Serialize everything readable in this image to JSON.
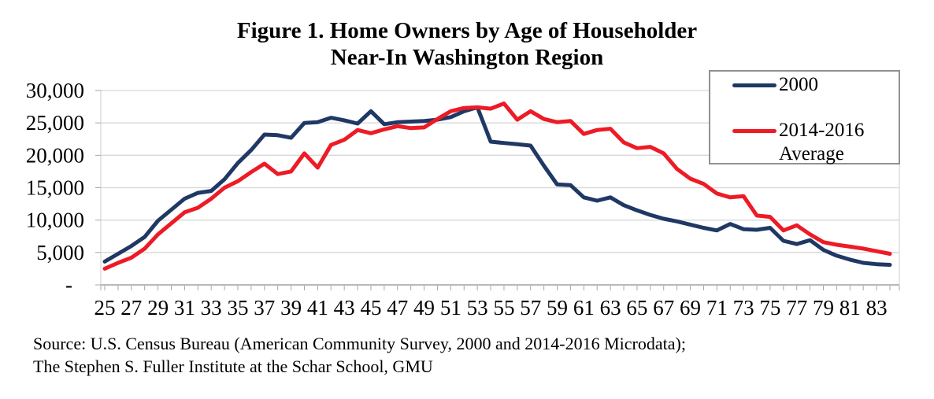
{
  "figure": {
    "title_line1": "Figure 1. Home Owners by Age of Householder",
    "title_line2": "Near-In Washington Region",
    "source_line1": "Source: U.S. Census Bureau (American Community Survey, 2000 and 2014-2016 Microdata);",
    "source_line2": "The Stephen S. Fuller Institute at the Schar School, GMU"
  },
  "styles": {
    "gridline_color": "#D8D8D8",
    "axis_color": "#A6A6A6",
    "legend_border_color": "#919191",
    "text_color": "#000000",
    "background": "#FFFFFF"
  },
  "chart_data": {
    "type": "line",
    "title": "Figure 1. Home Owners by Age of Householder Near-In Washington Region",
    "xlabel": "",
    "ylabel": "",
    "ylim": [
      0,
      30000
    ],
    "grid": true,
    "legend_position": "top-right",
    "x": [
      25,
      26,
      27,
      28,
      29,
      30,
      31,
      32,
      33,
      34,
      35,
      36,
      37,
      38,
      39,
      40,
      41,
      42,
      43,
      44,
      45,
      46,
      47,
      48,
      49,
      50,
      51,
      52,
      53,
      54,
      55,
      56,
      57,
      58,
      59,
      60,
      61,
      62,
      63,
      64,
      65,
      66,
      67,
      68,
      69,
      70,
      71,
      72,
      73,
      74,
      75,
      76,
      77,
      78,
      79,
      80,
      81,
      82,
      83,
      84
    ],
    "x_tick_labels": [
      "25",
      "27",
      "29",
      "31",
      "33",
      "35",
      "37",
      "39",
      "41",
      "43",
      "45",
      "47",
      "49",
      "51",
      "53",
      "55",
      "57",
      "59",
      "61",
      "63",
      "65",
      "67",
      "69",
      "71",
      "73",
      "75",
      "77",
      "79",
      "81",
      "83"
    ],
    "y_ticks": [
      {
        "value": 0,
        "label": "-"
      },
      {
        "value": 5000,
        "label": "5,000"
      },
      {
        "value": 10000,
        "label": "10,000"
      },
      {
        "value": 15000,
        "label": "15,000"
      },
      {
        "value": 20000,
        "label": "20,000"
      },
      {
        "value": 25000,
        "label": "25,000"
      },
      {
        "value": 30000,
        "label": "30,000"
      }
    ],
    "series": [
      {
        "name": "2000",
        "color": "#1F3864",
        "values": [
          3600,
          4800,
          6000,
          7400,
          9900,
          11600,
          13300,
          14200,
          14500,
          16300,
          18800,
          20800,
          23200,
          23100,
          22700,
          25000,
          25100,
          25800,
          25400,
          24900,
          26800,
          24800,
          25100,
          25200,
          25300,
          25500,
          25900,
          26800,
          27400,
          22100,
          21900,
          21700,
          21500,
          18400,
          15500,
          15400,
          13500,
          13000,
          13500,
          12300,
          11500,
          10800,
          10200,
          9800,
          9300,
          8800,
          8400,
          9400,
          8600,
          8500,
          8800,
          6800,
          6300,
          6900,
          5400,
          4500,
          3900,
          3400,
          3200,
          3100
        ]
      },
      {
        "name": "2014-2016 Average",
        "color": "#ED1B26",
        "values": [
          2500,
          3400,
          4200,
          5600,
          7800,
          9500,
          11200,
          11900,
          13300,
          15000,
          16000,
          17400,
          18700,
          17100,
          17500,
          20300,
          18100,
          21600,
          22400,
          23900,
          23400,
          24000,
          24500,
          24200,
          24300,
          25600,
          26800,
          27300,
          27400,
          27200,
          28000,
          25500,
          26800,
          25600,
          25100,
          25300,
          23300,
          23900,
          24100,
          22000,
          21100,
          21300,
          20300,
          17900,
          16400,
          15600,
          14100,
          13500,
          13700,
          10700,
          10500,
          8400,
          9200,
          7800,
          6600,
          6200,
          5900,
          5600,
          5200,
          4800
        ]
      }
    ]
  }
}
